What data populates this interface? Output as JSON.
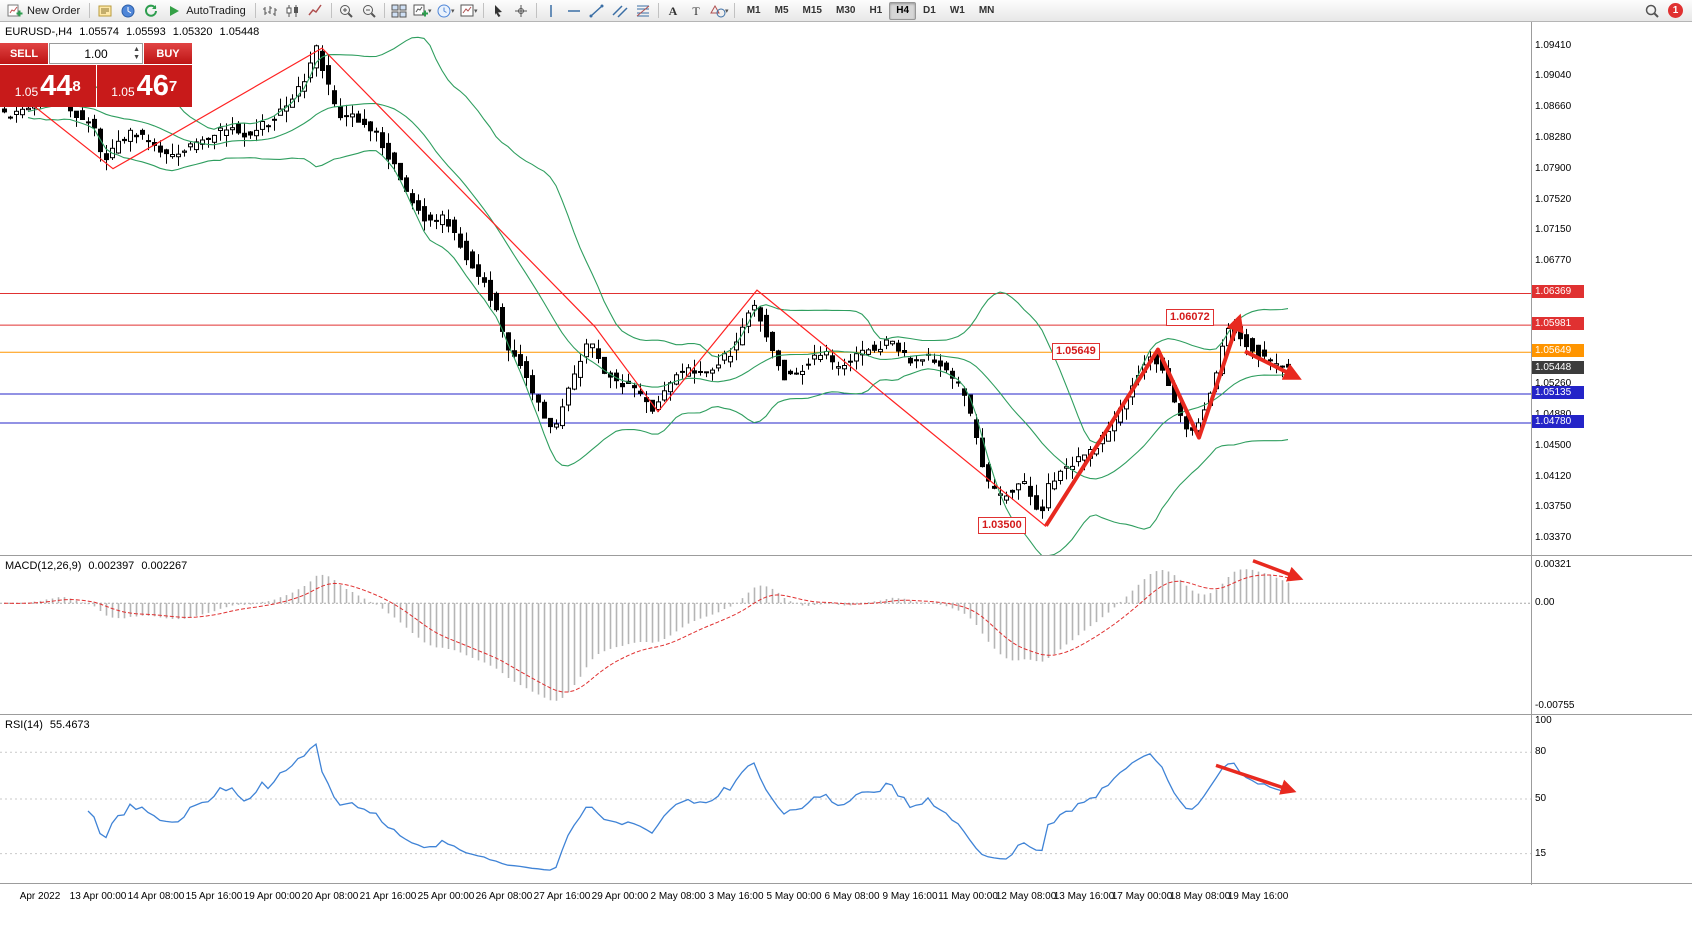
{
  "toolbar": {
    "items": [
      {
        "t": "btn",
        "icon": "new-order-icon",
        "name": "new-order",
        "label": "New Order"
      },
      {
        "t": "sep"
      },
      {
        "t": "ico",
        "icon": "metaeditor-icon",
        "name": "metaeditor"
      },
      {
        "t": "ico",
        "icon": "market-watch-icon",
        "name": "market-watch"
      },
      {
        "t": "ico",
        "icon": "refresh-icon",
        "name": "refresh"
      },
      {
        "t": "btn",
        "icon": "autotrading-icon",
        "name": "autotrading",
        "label": "AutoTrading"
      },
      {
        "t": "sep"
      },
      {
        "t": "ico",
        "icon": "bar-chart-icon",
        "name": "bar-chart-mode"
      },
      {
        "t": "ico",
        "icon": "candle-chart-icon",
        "name": "candlestick-mode"
      },
      {
        "t": "ico",
        "icon": "line-chart-icon",
        "name": "line-chart-mode"
      },
      {
        "t": "sep"
      },
      {
        "t": "ico",
        "icon": "zoom-in-icon",
        "name": "zoom-in"
      },
      {
        "t": "ico",
        "icon": "zoom-out-icon",
        "name": "zoom-out"
      },
      {
        "t": "sep"
      },
      {
        "t": "ico",
        "icon": "tile-windows-icon",
        "name": "tile-windows"
      },
      {
        "t": "ico",
        "icon": "new-chart-icon",
        "name": "indicators-list",
        "dropdown": true
      },
      {
        "t": "ico",
        "icon": "period-icon",
        "name": "periods",
        "dropdown": true
      },
      {
        "t": "ico",
        "icon": "template-icon",
        "name": "templates",
        "dropdown": true
      },
      {
        "t": "sep"
      },
      {
        "t": "ico",
        "icon": "cursor-icon",
        "name": "cursor-tool"
      },
      {
        "t": "ico",
        "icon": "crosshair-icon",
        "name": "crosshair-tool"
      },
      {
        "t": "sep"
      },
      {
        "t": "ico",
        "icon": "vline-icon",
        "name": "vertical-line-tool"
      },
      {
        "t": "ico",
        "icon": "hline-icon",
        "name": "horizontal-line-tool"
      },
      {
        "t": "ico",
        "icon": "trendline-icon",
        "name": "trendline-tool"
      },
      {
        "t": "ico",
        "icon": "channel-icon",
        "name": "equidistant-channel-tool"
      },
      {
        "t": "ico",
        "icon": "fibonacci-icon",
        "name": "fibonacci-tool"
      },
      {
        "t": "sep"
      },
      {
        "t": "ico",
        "icon": "text-icon",
        "name": "text-tool"
      },
      {
        "t": "ico",
        "icon": "label-icon",
        "name": "text-label-tool"
      },
      {
        "t": "ico",
        "icon": "shapes-icon",
        "name": "arrows-tool",
        "dropdown": true
      },
      {
        "t": "sep"
      }
    ],
    "timeframes": [
      "M1",
      "M5",
      "M15",
      "M30",
      "H1",
      "H4",
      "D1",
      "W1",
      "MN"
    ],
    "active_timeframe": "H4",
    "notification_count": "1"
  },
  "chart_header": {
    "symbol_period": "EURUSD-,H4",
    "open": "1.05574",
    "high": "1.05593",
    "low": "1.05320",
    "close": "1.05448"
  },
  "trade_panel": {
    "sell_label": "SELL",
    "buy_label": "BUY",
    "volume": "1.00",
    "sell_price": {
      "prefix": "1.05",
      "big": "44",
      "sup": "8"
    },
    "buy_price": {
      "prefix": "1.05",
      "big": "46",
      "sup": "7"
    }
  },
  "colors": {
    "bull_candle": "#ffffff",
    "bear_candle": "#000000",
    "candle_outline": "#000000",
    "bollinger": "#2f9e5f",
    "zigzag": "#ff2222",
    "trend_arrow": "#e8291f",
    "current_price_badge": "#3c3c3c",
    "macd_histogram": "#b5b5b5",
    "macd_signal": "#e03131",
    "rsi_line": "#3f83d6"
  },
  "chart_data": {
    "type": "candlestick",
    "symbol": "EURUSD-",
    "timeframe": "H4",
    "y_range": [
      1.0316,
      1.097
    ],
    "price_axis_ticks": [
      "1.09410",
      "1.09040",
      "1.08660",
      "1.08280",
      "1.07900",
      "1.07520",
      "1.07150",
      "1.06770",
      "1.06390",
      "1.06010",
      "1.05630",
      "1.05260",
      "1.04880",
      "1.04500",
      "1.04120",
      "1.03750",
      "1.03370"
    ],
    "candle_count": 215,
    "candle_spacing_px": 6,
    "price_path": [
      [
        0,
        1.0862
      ],
      [
        18,
        1.0852
      ],
      [
        40,
        1.0868
      ],
      [
        62,
        1.0884
      ],
      [
        80,
        1.0858
      ],
      [
        100,
        1.0842
      ],
      [
        110,
        1.0794
      ],
      [
        122,
        1.0822
      ],
      [
        140,
        1.0835
      ],
      [
        158,
        1.0818
      ],
      [
        175,
        1.0808
      ],
      [
        195,
        1.0818
      ],
      [
        215,
        1.0828
      ],
      [
        235,
        1.0842
      ],
      [
        255,
        1.0832
      ],
      [
        275,
        1.0848
      ],
      [
        295,
        1.0872
      ],
      [
        310,
        1.0902
      ],
      [
        322,
        1.0936
      ],
      [
        332,
        1.0895
      ],
      [
        345,
        1.0856
      ],
      [
        362,
        1.0852
      ],
      [
        378,
        1.0838
      ],
      [
        392,
        1.0812
      ],
      [
        408,
        1.0772
      ],
      [
        422,
        1.0742
      ],
      [
        436,
        1.0722
      ],
      [
        450,
        1.0733
      ],
      [
        464,
        1.0704
      ],
      [
        478,
        1.0668
      ],
      [
        492,
        1.0645
      ],
      [
        505,
        1.0605
      ],
      [
        515,
        1.0568
      ],
      [
        528,
        1.0545
      ],
      [
        540,
        1.0512
      ],
      [
        552,
        1.0478
      ],
      [
        562,
        1.0472
      ],
      [
        575,
        1.0522
      ],
      [
        588,
        1.0562
      ],
      [
        596,
        1.0578
      ],
      [
        606,
        1.0548
      ],
      [
        620,
        1.0532
      ],
      [
        636,
        1.0524
      ],
      [
        650,
        1.0506
      ],
      [
        658,
        1.0494
      ],
      [
        668,
        1.0518
      ],
      [
        680,
        1.0536
      ],
      [
        695,
        1.0542
      ],
      [
        710,
        1.054
      ],
      [
        724,
        1.0552
      ],
      [
        738,
        1.0566
      ],
      [
        748,
        1.0598
      ],
      [
        757,
        1.0628
      ],
      [
        766,
        1.0606
      ],
      [
        776,
        1.0572
      ],
      [
        790,
        1.0536
      ],
      [
        804,
        1.0542
      ],
      [
        818,
        1.0556
      ],
      [
        830,
        1.0568
      ],
      [
        842,
        1.0542
      ],
      [
        856,
        1.0556
      ],
      [
        870,
        1.0568
      ],
      [
        884,
        1.0572
      ],
      [
        898,
        1.0578
      ],
      [
        912,
        1.0556
      ],
      [
        926,
        1.056
      ],
      [
        940,
        1.0556
      ],
      [
        954,
        1.054
      ],
      [
        968,
        1.0518
      ],
      [
        980,
        1.0468
      ],
      [
        992,
        1.0408
      ],
      [
        1004,
        1.0386
      ],
      [
        1016,
        1.0396
      ],
      [
        1028,
        1.0404
      ],
      [
        1038,
        1.0388
      ],
      [
        1046,
        1.0362
      ],
      [
        1056,
        1.0408
      ],
      [
        1068,
        1.042
      ],
      [
        1080,
        1.0428
      ],
      [
        1092,
        1.0442
      ],
      [
        1104,
        1.0452
      ],
      [
        1116,
        1.0468
      ],
      [
        1128,
        1.0502
      ],
      [
        1140,
        1.0532
      ],
      [
        1150,
        1.0552
      ],
      [
        1158,
        1.0564
      ],
      [
        1168,
        1.054
      ],
      [
        1178,
        1.0506
      ],
      [
        1188,
        1.0482
      ],
      [
        1198,
        1.0466
      ],
      [
        1208,
        1.0492
      ],
      [
        1218,
        1.0524
      ],
      [
        1228,
        1.0568
      ],
      [
        1237,
        1.0602
      ],
      [
        1247,
        1.0582
      ],
      [
        1258,
        1.057
      ],
      [
        1268,
        1.056
      ],
      [
        1278,
        1.0552
      ],
      [
        1290,
        1.0546
      ]
    ],
    "bollinger": {
      "period": 20,
      "deviation": 2
    },
    "levels": [
      {
        "price": 1.06369,
        "label": "1.06369",
        "color": "#e03131"
      },
      {
        "price": 1.05981,
        "label": "1.05981",
        "color": "#e03131"
      },
      {
        "price": 1.05649,
        "label": "1.05649",
        "color": "#ff9500"
      },
      {
        "price": 1.05135,
        "label": "1.05135",
        "color": "#2424c8"
      },
      {
        "price": 1.0478,
        "label": "1.04780",
        "color": "#2424c8"
      }
    ],
    "current_price": {
      "value": 1.05448,
      "label": "1.05448"
    },
    "zigzag": [
      [
        2,
        1.0898
      ],
      [
        113,
        1.079
      ],
      [
        322,
        1.0938
      ],
      [
        595,
        1.0596
      ],
      [
        658,
        1.0492
      ],
      [
        757,
        1.0641
      ],
      [
        1046,
        1.0351
      ]
    ],
    "callouts": [
      {
        "text": "1.06072",
        "x": 1166,
        "price": 1.06072
      },
      {
        "text": "1.05649",
        "x": 1052,
        "price": 1.05649
      },
      {
        "text": "1.03500",
        "x": 978,
        "price": 1.0352
      }
    ],
    "annotations": {
      "main_trend": [
        [
          1046,
          1.0352
        ],
        [
          1158,
          1.0568
        ],
        [
          1199,
          1.046
        ],
        [
          1239,
          1.0606
        ]
      ],
      "main_arrow": {
        "from": [
          1245,
          1.0566
        ],
        "to": [
          1297,
          1.0534
        ]
      },
      "macd_arrow": {
        "from": [
          1253,
          0.03
        ],
        "to": [
          1299,
          0.14
        ]
      },
      "rsi_arrow": {
        "from": [
          1216,
          0.3
        ],
        "to": [
          1292,
          0.45
        ]
      }
    },
    "time_axis": [
      "Apr 2022",
      "13 Apr 00:00",
      "14 Apr 08:00",
      "15 Apr 16:00",
      "19 Apr 00:00",
      "20 Apr 08:00",
      "21 Apr 16:00",
      "25 Apr 00:00",
      "26 Apr 08:00",
      "27 Apr 16:00",
      "29 Apr 00:00",
      "2 May 08:00",
      "3 May 16:00",
      "5 May 00:00",
      "6 May 08:00",
      "9 May 16:00",
      "11 May 00:00",
      "12 May 08:00",
      "13 May 16:00",
      "17 May 00:00",
      "18 May 08:00",
      "19 May 16:00"
    ],
    "indicators": {
      "macd": {
        "name": "MACD(12,26,9)",
        "value_main": "0.002397",
        "value_signal": "0.002267",
        "fast": 12,
        "slow": 26,
        "signal": 9,
        "axis": {
          "top": "0.00321",
          "zero": "0.00",
          "bottom": "-0.00755"
        }
      },
      "rsi": {
        "name": "RSI(14)",
        "value": "55.4673",
        "period": 14,
        "axis_labels": [
          {
            "v": 100,
            "t": "100",
            "line": false
          },
          {
            "v": 80,
            "t": "80",
            "line": true
          },
          {
            "v": 50,
            "t": "50",
            "line": true
          },
          {
            "v": 15,
            "t": "15",
            "line": true
          }
        ]
      }
    }
  }
}
